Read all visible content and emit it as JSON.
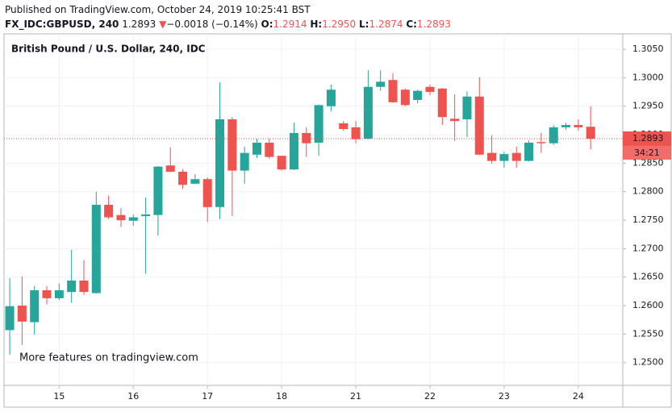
{
  "header": {
    "published": "Published on TradingView.com, October 24, 2019 10:25:41 BST",
    "symbol": "FX_IDC:GBPUSD, 240",
    "last": "1.2893",
    "change_arrow": "▼",
    "change": "−0.0018 (−0.14%)",
    "o_label": "O:",
    "o": "1.2914",
    "h_label": "H:",
    "h": "1.2950",
    "l_label": "L:",
    "l": "1.2874",
    "c_label": "C:",
    "c": "1.2893"
  },
  "chart_data": {
    "type": "candlestick",
    "title": "British Pound / U.S. Dollar, 240, IDC",
    "watermark": "More features on tradingview.com",
    "up_color": "#26a69a",
    "down_color": "#ef5350",
    "grid": true,
    "open": [
      1.2557,
      1.26,
      1.2571,
      1.2627,
      1.2613,
      1.2624,
      1.2644,
      1.2622,
      1.2777,
      1.2759,
      1.2749,
      1.2757,
      1.2759,
      1.2846,
      1.2835,
      1.2814,
      1.2822,
      1.2773,
      1.2927,
      1.2837,
      1.2865,
      1.2886,
      1.2863,
      1.2839,
      1.2903,
      1.2886,
      1.295,
      1.292,
      1.2913,
      1.2893,
      1.2984,
      1.2996,
      1.2979,
      1.2961,
      1.2984,
      1.2981,
      1.2928,
      1.2927,
      1.2967,
      1.2868,
      1.2854,
      1.2868,
      1.2854,
      1.2887,
      1.2885,
      1.2913,
      1.2917,
      1.2914
    ],
    "high": [
      1.2648,
      1.2651,
      1.2634,
      1.2634,
      1.2639,
      1.2698,
      1.268,
      1.28,
      1.2793,
      1.2771,
      1.276,
      1.279,
      1.2845,
      1.2878,
      1.2839,
      1.2831,
      1.2825,
      1.2992,
      1.2931,
      1.2879,
      1.2893,
      1.2893,
      1.2863,
      1.2921,
      1.2913,
      1.2953,
      1.2988,
      1.2924,
      1.2924,
      1.3013,
      1.3013,
      1.3008,
      1.2981,
      1.2979,
      1.2988,
      1.2982,
      1.2971,
      1.2976,
      1.3001,
      1.2899,
      1.287,
      1.2879,
      1.289,
      1.2903,
      1.2917,
      1.2921,
      1.2927,
      1.295
    ],
    "low": [
      1.2514,
      1.2531,
      1.2549,
      1.2602,
      1.261,
      1.2605,
      1.2619,
      1.2621,
      1.2752,
      1.2738,
      1.274,
      1.2656,
      1.2723,
      1.2834,
      1.2805,
      1.2813,
      1.2747,
      1.2752,
      1.2757,
      1.2814,
      1.2859,
      1.2858,
      1.2837,
      1.2838,
      1.2861,
      1.2863,
      1.2941,
      1.2907,
      1.2885,
      1.2892,
      1.2977,
      1.2956,
      1.295,
      1.2955,
      1.2969,
      1.2917,
      1.2889,
      1.2896,
      1.2864,
      1.2849,
      1.2842,
      1.2842,
      1.2853,
      1.2868,
      1.2882,
      1.2909,
      1.2907,
      1.2874
    ],
    "close": [
      1.2599,
      1.2572,
      1.2627,
      1.2613,
      1.2627,
      1.2644,
      1.2624,
      1.2777,
      1.2755,
      1.275,
      1.2755,
      1.276,
      1.2844,
      1.2835,
      1.2812,
      1.2822,
      1.2773,
      1.2927,
      1.2837,
      1.2868,
      1.2886,
      1.2861,
      1.2839,
      1.2903,
      1.2885,
      1.2952,
      1.2979,
      1.291,
      1.2892,
      1.2984,
      1.2993,
      1.2957,
      1.2952,
      1.2977,
      1.2975,
      1.2931,
      1.2924,
      1.2967,
      1.2865,
      1.2854,
      1.2866,
      1.2854,
      1.2886,
      1.2885,
      1.2913,
      1.2917,
      1.2913,
      1.2893
    ],
    "xlim": [
      -0.46,
      49.6
    ],
    "xticks": [
      {
        "value": 4,
        "label": "15"
      },
      {
        "value": 10,
        "label": "16"
      },
      {
        "value": 16,
        "label": "17"
      },
      {
        "value": 22,
        "label": "18"
      },
      {
        "value": 28,
        "label": "21"
      },
      {
        "value": 34,
        "label": "22"
      },
      {
        "value": 40,
        "label": "23"
      },
      {
        "value": 46,
        "label": "24"
      }
    ],
    "ylim": [
      1.246,
      1.3077
    ],
    "yticks": [
      {
        "value": 1.25,
        "label": "1.2500"
      },
      {
        "value": 1.255,
        "label": "1.2550"
      },
      {
        "value": 1.26,
        "label": "1.2600"
      },
      {
        "value": 1.265,
        "label": "1.2650"
      },
      {
        "value": 1.27,
        "label": "1.2700"
      },
      {
        "value": 1.275,
        "label": "1.2750"
      },
      {
        "value": 1.28,
        "label": "1.2800"
      },
      {
        "value": 1.285,
        "label": "1.2850"
      },
      {
        "value": 1.29,
        "label": "1.2900"
      },
      {
        "value": 1.295,
        "label": "1.2950"
      },
      {
        "value": 1.3,
        "label": "1.3000"
      },
      {
        "value": 1.305,
        "label": "1.3050"
      }
    ],
    "price_line": {
      "value": 1.2893,
      "label": "1.2893",
      "countdown": "34:21"
    }
  }
}
